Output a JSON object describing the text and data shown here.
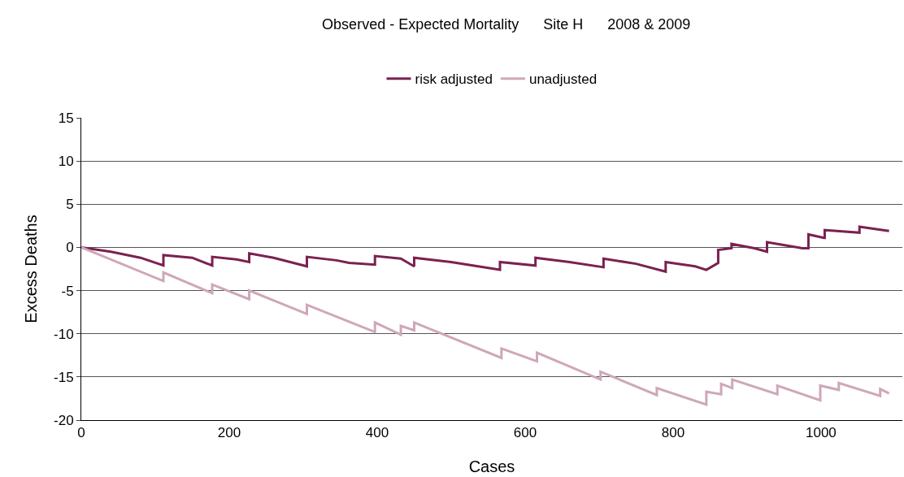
{
  "chart_data": {
    "type": "line",
    "title": "Observed - Expected Mortality      Site H      2008 & 2009",
    "xlabel": "Cases",
    "ylabel": "Excess Deaths",
    "xlim": [
      0,
      1110
    ],
    "xticks": [
      0,
      200,
      400,
      600,
      800,
      1000
    ],
    "ylim": [
      -20,
      15
    ],
    "yticks": [
      -20,
      -15,
      -10,
      -5,
      0,
      5,
      10,
      15
    ],
    "grid": "y",
    "legend": "top",
    "marker": "none",
    "line_style": "solid",
    "series": [
      {
        "name": "risk adjusted",
        "color": "#7b2150",
        "x": [
          0,
          40,
          80,
          111,
          111,
          150,
          177,
          177,
          210,
          227,
          227,
          260,
          305,
          305,
          345,
          362,
          397,
          397,
          432,
          450,
          450,
          500,
          566,
          566,
          614,
          614,
          660,
          706,
          706,
          750,
          790,
          790,
          830,
          845,
          861,
          861,
          879,
          879,
          910,
          927,
          927,
          975,
          983,
          983,
          1004,
          1005,
          1005,
          1052,
          1052,
          1092
        ],
        "values": [
          0,
          -0.5,
          -1.2,
          -2.1,
          -0.9,
          -1.2,
          -2.1,
          -1.1,
          -1.4,
          -1.7,
          -0.7,
          -1.2,
          -2.2,
          -1.1,
          -1.5,
          -1.8,
          -2.0,
          -1.0,
          -1.3,
          -2.2,
          -1.2,
          -1.7,
          -2.6,
          -1.7,
          -2.1,
          -1.2,
          -1.7,
          -2.3,
          -1.3,
          -1.9,
          -2.8,
          -1.7,
          -2.2,
          -2.6,
          -1.8,
          -0.3,
          -0.1,
          0.4,
          -0.1,
          -0.5,
          0.6,
          -0.1,
          -0.1,
          1.5,
          1.1,
          1.1,
          2.0,
          1.7,
          2.4,
          1.9
        ]
      },
      {
        "name": "unadjusted",
        "color": "#cfa7b9",
        "x": [
          0,
          111,
          111,
          177,
          177,
          227,
          227,
          305,
          305,
          362,
          397,
          397,
          432,
          432,
          450,
          450,
          568,
          568,
          616,
          616,
          702,
          702,
          778,
          778,
          845,
          845,
          865,
          865,
          880,
          880,
          941,
          941,
          999,
          999,
          1024,
          1024,
          1080,
          1080,
          1092
        ],
        "values": [
          0,
          -3.9,
          -2.9,
          -5.3,
          -4.3,
          -6.0,
          -5.0,
          -7.7,
          -6.65,
          -8.6,
          -9.8,
          -8.7,
          -10.1,
          -9.1,
          -9.6,
          -8.7,
          -12.8,
          -11.7,
          -13.2,
          -12.2,
          -15.3,
          -14.4,
          -17.1,
          -16.3,
          -18.2,
          -16.7,
          -17.0,
          -15.8,
          -16.3,
          -15.3,
          -17.0,
          -16.0,
          -17.7,
          -16.0,
          -16.5,
          -15.7,
          -17.2,
          -16.4,
          -16.9
        ]
      }
    ]
  }
}
